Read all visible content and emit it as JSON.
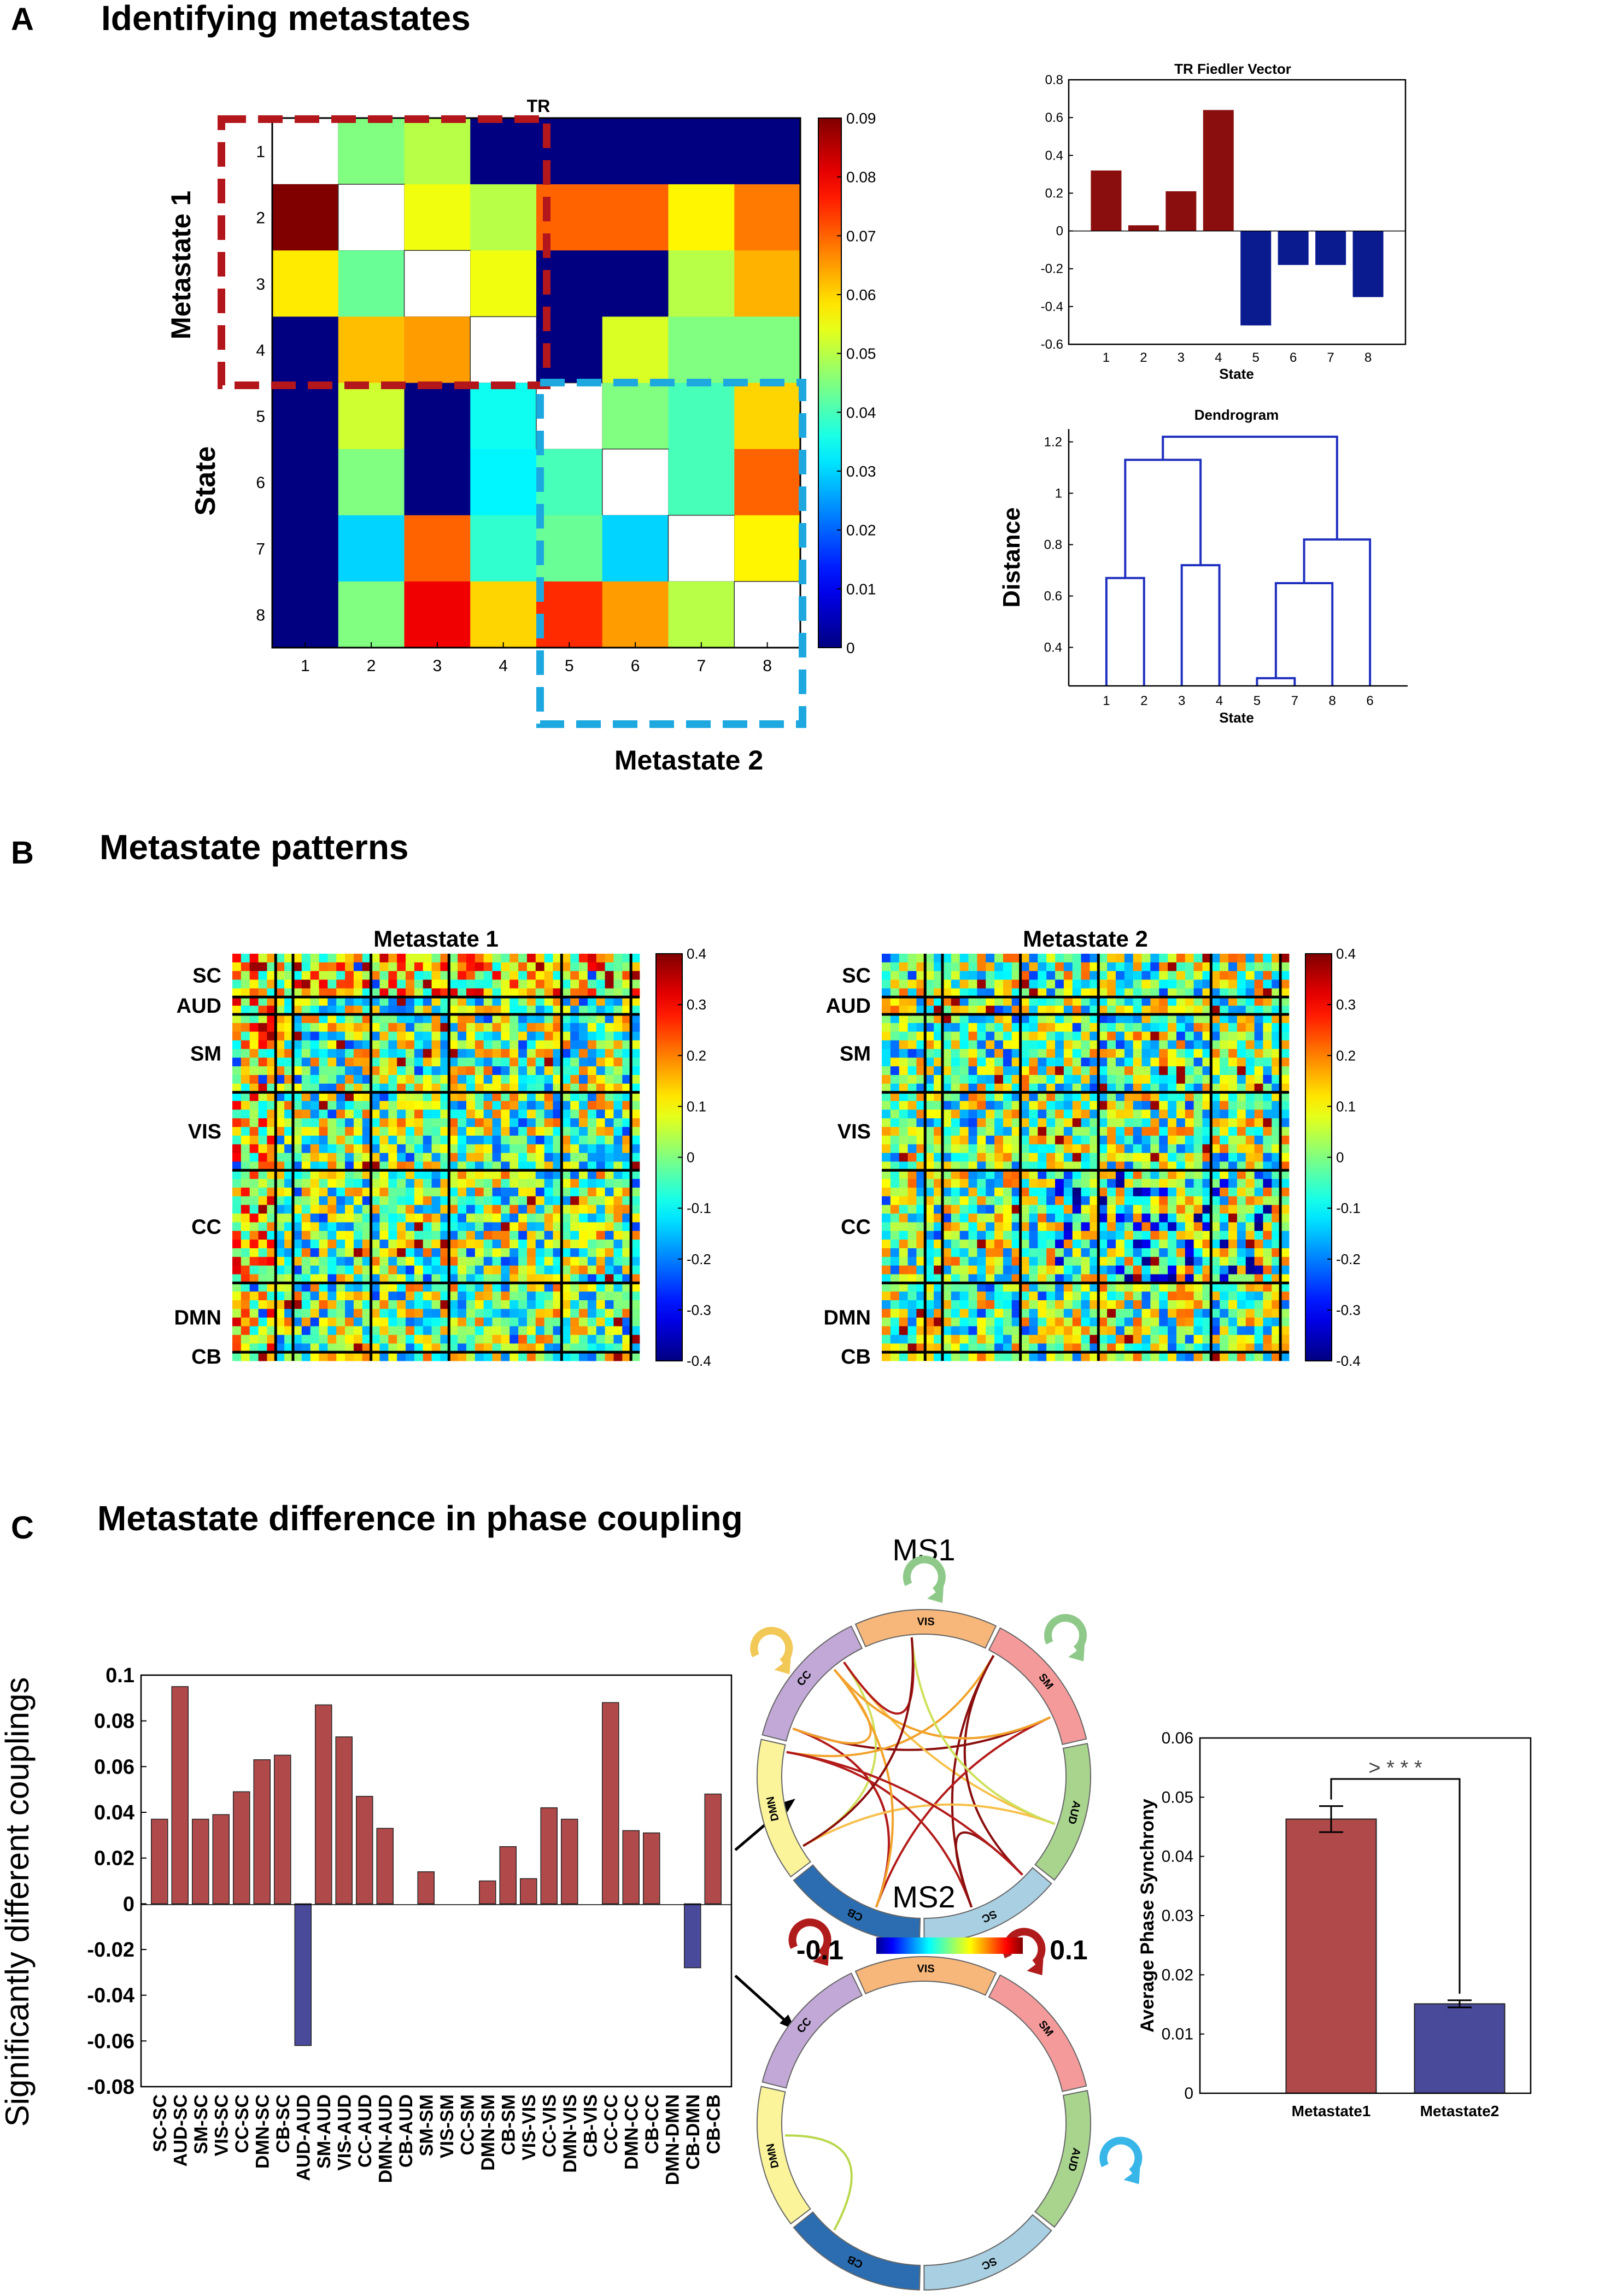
{
  "panels": {
    "A": {
      "letter": "A",
      "title": "Identifying metastates"
    },
    "B": {
      "letter": "B",
      "title": "Metastate patterns"
    },
    "C": {
      "letter": "C",
      "title": "Metastate difference in phase coupling"
    }
  },
  "colors": {
    "metastate1_box": "#b3161b",
    "metastate2_box": "#1ea8e0",
    "pos_bar": "#b04a4a",
    "neg_bar": "#4a4a9a",
    "fiedler_pos": "#8b0e0e",
    "fiedler_neg": "#0a1a8f",
    "dendro": "#1f2fbf",
    "network_colors": {
      "VIS": "#f7b77a",
      "SM": "#f59a9a",
      "AUD": "#a8d48e",
      "SC": "#a9cfe2",
      "CB": "#2b6db0",
      "DMN": "#fbf49a",
      "CC": "#c2a8d6"
    },
    "arrow_green": "#8fc98a",
    "arrow_yellow": "#f2c957",
    "arrow_red": "#b01c1c",
    "arrow_blue": "#38b6e8"
  },
  "chart_data": [
    {
      "id": "transition_matrix",
      "type": "heatmap",
      "title": "TR",
      "xlabel": "",
      "ylabel": "State",
      "x_ticks": [
        "1",
        "2",
        "3",
        "4",
        "5",
        "6",
        "7",
        "8"
      ],
      "y_ticks": [
        "1",
        "2",
        "3",
        "4",
        "5",
        "6",
        "7",
        "8"
      ],
      "colorbar_range": [
        0,
        0.09
      ],
      "colorbar_ticks": [
        "0",
        "0.01",
        "0.02",
        "0.03",
        "0.04",
        "0.05",
        "0.06",
        "0.07",
        "0.08",
        "0.09"
      ],
      "diagonal": "blank",
      "values": [
        [
          null,
          0.045,
          0.05,
          0,
          0,
          0,
          0,
          0
        ],
        [
          0.09,
          null,
          0.055,
          0.05,
          0.07,
          0.07,
          0.057,
          0.068
        ],
        [
          0.058,
          0.043,
          null,
          0.055,
          0,
          0,
          0.05,
          0.063
        ],
        [
          0,
          0.062,
          0.065,
          null,
          0,
          0.053,
          0.045,
          0.045
        ],
        [
          0,
          0.052,
          0,
          0.035,
          null,
          0.045,
          0.04,
          0.06
        ],
        [
          0,
          0.045,
          0,
          0.033,
          0.04,
          null,
          0.04,
          0.07
        ],
        [
          0,
          0.03,
          0.07,
          0.038,
          0.043,
          0.03,
          null,
          0.057
        ],
        [
          0,
          0.045,
          0.08,
          0.06,
          0.075,
          0.065,
          0.05,
          null
        ]
      ],
      "box_labels": [
        "Metastate 1",
        "Metastate 2"
      ]
    },
    {
      "id": "fiedler",
      "type": "bar",
      "title": "TR Fiedler Vector",
      "xlabel": "State",
      "ylabel": "",
      "categories": [
        "1",
        "2",
        "3",
        "4",
        "5",
        "6",
        "7",
        "8"
      ],
      "values": [
        0.32,
        0.03,
        0.21,
        0.64,
        -0.5,
        -0.18,
        -0.18,
        -0.35
      ],
      "ylim": [
        -0.6,
        0.8
      ],
      "y_ticks": [
        -0.6,
        -0.4,
        -0.2,
        0,
        0.2,
        0.4,
        0.6,
        0.8
      ],
      "y_tick_labels": [
        "-0.6",
        "-0.4",
        "-0.2",
        "0",
        "0.2",
        "0.4",
        "0.6",
        "0.8"
      ]
    },
    {
      "id": "dendrogram",
      "type": "dendrogram",
      "title": "Dendrogram",
      "xlabel": "State",
      "ylabel": "Distance",
      "leaf_order": [
        "1",
        "2",
        "3",
        "4",
        "5",
        "7",
        "8",
        "6"
      ],
      "ylim": [
        0.25,
        1.25
      ],
      "y_ticks": [
        0.4,
        0.6,
        0.8,
        1,
        1.2
      ],
      "y_tick_labels": [
        "0.4",
        "0.6",
        "0.8",
        "1",
        "1.2"
      ],
      "merges": [
        {
          "a": [
            0,
            0.25
          ],
          "b": [
            1,
            0.25
          ],
          "h": 0.67
        },
        {
          "a": [
            2,
            0.25
          ],
          "b": [
            3,
            0.25
          ],
          "h": 0.72
        },
        {
          "a": [
            4,
            0.25
          ],
          "b": [
            5,
            0.25
          ],
          "h": 0.28
        },
        {
          "a": [
            4.5,
            0.28
          ],
          "b": [
            6,
            0.25
          ],
          "h": 0.65
        },
        {
          "a": [
            5.25,
            0.65
          ],
          "b": [
            7,
            0.25
          ],
          "h": 0.82
        },
        {
          "a": [
            0.5,
            0.67
          ],
          "b": [
            2.5,
            0.72
          ],
          "h": 1.13
        },
        {
          "a": [
            1.5,
            1.13
          ],
          "b": [
            6.125,
            0.82
          ],
          "h": 1.22
        }
      ]
    },
    {
      "id": "pattern_ms1",
      "type": "heatmap",
      "title": "Metastate 1",
      "network_labels": [
        "SC",
        "AUD",
        "SM",
        "VIS",
        "CC",
        "DMN",
        "CB"
      ],
      "n": 47,
      "boundaries": [
        5,
        7,
        16,
        25,
        38,
        46
      ],
      "colorbar_range": [
        -0.4,
        0.4
      ],
      "colorbar_ticks": [
        "0.4",
        "0.3",
        "0.2",
        "0.1",
        "0",
        "-0.1",
        "-0.2",
        "-0.3",
        "-0.4"
      ]
    },
    {
      "id": "pattern_ms2",
      "type": "heatmap",
      "title": "Metastate 2",
      "network_labels": [
        "SC",
        "AUD",
        "SM",
        "VIS",
        "CC",
        "DMN",
        "CB"
      ],
      "n": 47,
      "boundaries": [
        5,
        7,
        16,
        25,
        38,
        46
      ],
      "colorbar_range": [
        -0.4,
        0.4
      ],
      "colorbar_ticks": [
        "0.4",
        "0.3",
        "0.2",
        "0.1",
        "0",
        "-0.1",
        "-0.2",
        "-0.3",
        "-0.4"
      ]
    },
    {
      "id": "coupling_diff",
      "type": "bar",
      "title": "",
      "xlabel": "",
      "ylabel": "Significantly different couplings",
      "categories": [
        "SC-SC",
        "AUD-SC",
        "SM-SC",
        "VIS-SC",
        "CC-SC",
        "DMN-SC",
        "CB-SC",
        "AUD-AUD",
        "SM-AUD",
        "VIS-AUD",
        "CC-AUD",
        "DMN-AUD",
        "CB-AUD",
        "SM-SM",
        "VIS-SM",
        "CC-SM",
        "DMN-SM",
        "CB-SM",
        "VIS-VIS",
        "CC-VIS",
        "DMN-VIS",
        "CB-VIS",
        "CC-CC",
        "DMN-CC",
        "CB-CC",
        "DMN-DMN",
        "CB-DMN",
        "CB-CB"
      ],
      "values": [
        0.037,
        0.095,
        0.037,
        0.039,
        0.049,
        0.063,
        0.065,
        -0.062,
        0.087,
        0.073,
        0.047,
        0.033,
        0,
        0.014,
        0,
        0,
        0.01,
        0.025,
        0.011,
        0.042,
        0.037,
        0,
        0.088,
        0.032,
        0.031,
        0,
        -0.028,
        0.048
      ],
      "ylim": [
        -0.08,
        0.1
      ],
      "y_ticks": [
        -0.08,
        -0.06,
        -0.04,
        -0.02,
        0,
        0.02,
        0.04,
        0.06,
        0.08,
        0.1
      ],
      "y_tick_labels": [
        "-0.08",
        "-0.06",
        "-0.04",
        "-0.02",
        "0",
        "0.02",
        "0.04",
        "0.06",
        "0.08",
        "0.1"
      ]
    },
    {
      "id": "chord_ms1",
      "type": "chord",
      "title": "MS1",
      "sectors": [
        "VIS",
        "SM",
        "AUD",
        "SC",
        "CB",
        "DMN",
        "CC"
      ],
      "colorbar_labels": [
        "-0.1",
        "0.1"
      ]
    },
    {
      "id": "chord_ms2",
      "type": "chord",
      "title": "MS2",
      "sectors": [
        "VIS",
        "SM",
        "AUD",
        "SC",
        "CB",
        "DMN",
        "CC"
      ]
    },
    {
      "id": "avg_sync",
      "type": "bar",
      "title": "",
      "xlabel": "",
      "ylabel": "Average Phase Synchrony",
      "categories": [
        "Metastate1",
        "Metastate2"
      ],
      "values": [
        0.0463,
        0.0151
      ],
      "errors": [
        0.0022,
        0.0006
      ],
      "ylim": [
        0,
        0.06
      ],
      "y_ticks": [
        0,
        0.01,
        0.02,
        0.03,
        0.04,
        0.05,
        0.06
      ],
      "y_tick_labels": [
        "0",
        "0.01",
        "0.02",
        "0.03",
        "0.04",
        "0.05",
        "0.06"
      ],
      "significance": "> * * *"
    }
  ]
}
